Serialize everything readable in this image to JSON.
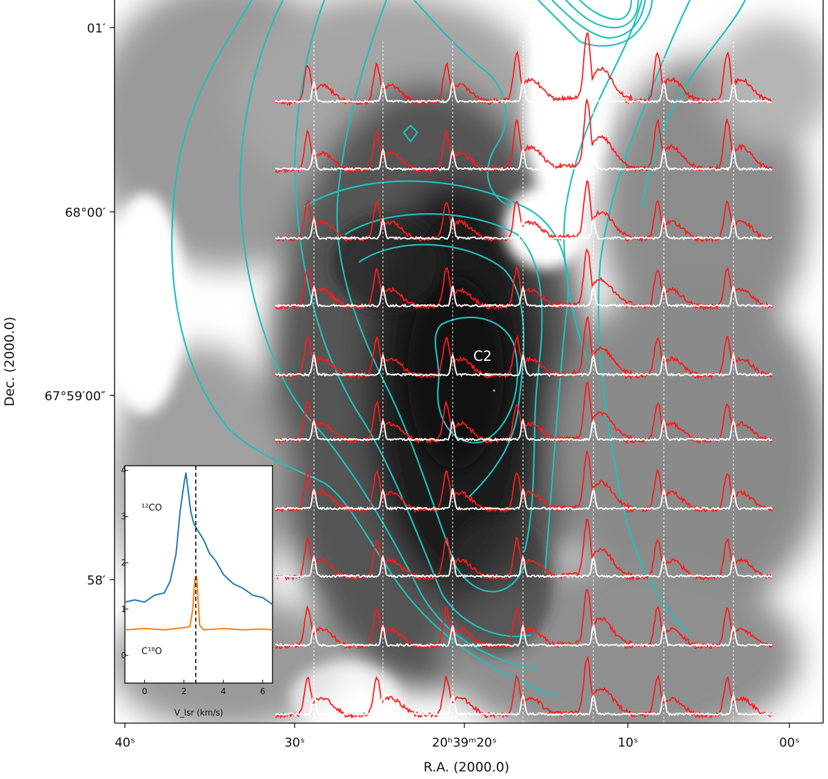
{
  "chart_data": [
    {
      "type": "heatmap",
      "description_axes": "main map",
      "xlabel": "R.A. (2000.0)",
      "ylabel": "Dec. (2000.0)",
      "x_ticks": [
        "40ˢ",
        "30ˢ",
        "20ʰ39ᵐ20ˢ",
        "10ˢ",
        "00ˢ"
      ],
      "y_ticks": [
        "01′",
        "68°00′",
        "67°59′00″",
        "58′"
      ],
      "source_label": "C2",
      "contour_color": "#1fbfbf",
      "spectrum_colors": {
        "co12": "#ff1a1a",
        "c18o": "#ffffff"
      },
      "spectra_grid": {
        "columns": 7,
        "rows": 10
      }
    },
    {
      "type": "line",
      "description_axes": "inset spectrum",
      "xlabel": "V_lsr (km/s)",
      "x_ticks": [
        "0",
        "2",
        "4",
        "6"
      ],
      "y_ticks": [
        "0",
        "1",
        "2",
        "3",
        "4"
      ],
      "xlim": [
        -1,
        6.5
      ],
      "ylim": [
        -0.6,
        4.1
      ],
      "vline": 2.6,
      "series": [
        {
          "name": "¹²CO",
          "color": "#1f77b4",
          "x": [
            -1.0,
            -0.5,
            0.0,
            0.5,
            1.0,
            1.3,
            1.6,
            1.8,
            2.0,
            2.1,
            2.2,
            2.35,
            2.5,
            2.7,
            3.0,
            3.3,
            3.6,
            4.0,
            4.5,
            5.0,
            5.5,
            6.0,
            6.5
          ],
          "y": [
            1.15,
            1.2,
            1.15,
            1.3,
            1.35,
            1.6,
            2.2,
            3.1,
            3.7,
            3.95,
            3.6,
            3.1,
            2.85,
            2.7,
            2.5,
            2.2,
            2.05,
            1.75,
            1.55,
            1.45,
            1.3,
            1.25,
            1.1
          ]
        },
        {
          "name": "C¹⁸O",
          "color": "#ff7f0e",
          "x": [
            -1.0,
            0.0,
            1.0,
            2.0,
            2.3,
            2.45,
            2.55,
            2.65,
            2.8,
            3.0,
            4.0,
            5.0,
            6.0,
            6.5
          ],
          "y": [
            0.55,
            0.58,
            0.55,
            0.6,
            0.62,
            1.0,
            1.65,
            1.7,
            0.65,
            0.55,
            0.58,
            0.55,
            0.57,
            0.55
          ]
        }
      ],
      "labels": {
        "co12": "¹²CO",
        "c18o": "C¹⁸O"
      }
    }
  ]
}
